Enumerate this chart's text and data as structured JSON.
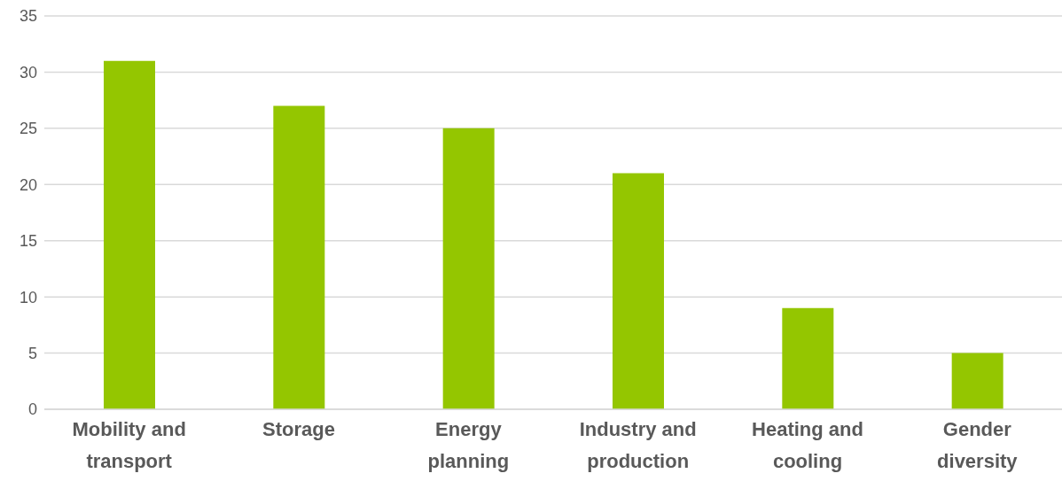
{
  "chart_data": {
    "type": "bar",
    "categories": [
      "Mobility and transport",
      "Storage",
      "Energy planning",
      "Industry and production",
      "Heating and cooling",
      "Gender diversity"
    ],
    "values": [
      31,
      27,
      25,
      21,
      9,
      5
    ],
    "color": "#94c600",
    "ylim": [
      0,
      35
    ],
    "yticks": [
      0,
      5,
      10,
      15,
      20,
      25,
      30,
      35
    ],
    "grid": "y"
  }
}
